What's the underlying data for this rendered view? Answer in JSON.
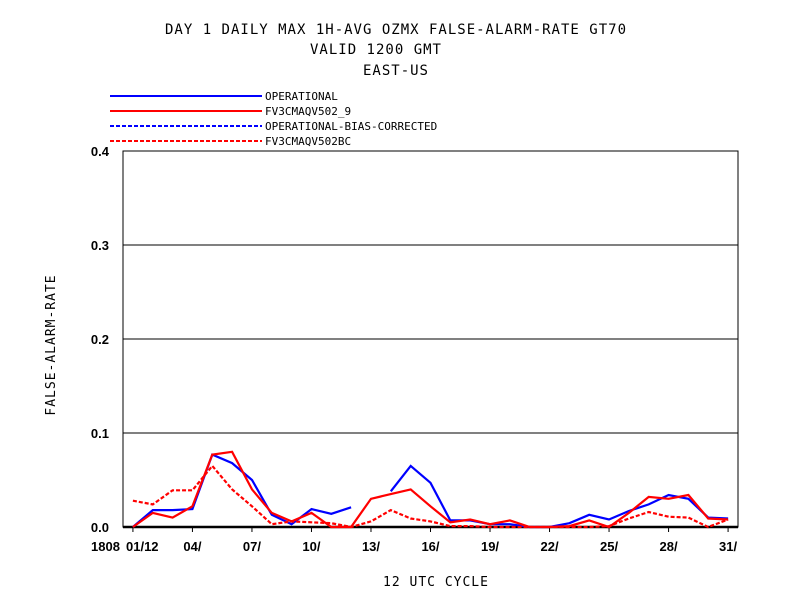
{
  "header": {
    "title_line1": "DAY 1 DAILY MAX   1H-AVG OZMX FALSE-ALARM-RATE GT70",
    "title_line2": "VALID 1200 GMT",
    "title_line3": "EAST-US"
  },
  "chart_data": {
    "type": "line",
    "title": "DAY 1 DAILY MAX   1H-AVG OZMX FALSE-ALARM-RATE GT70",
    "subtitle": "VALID 1200 GMT / EAST-US",
    "xlabel": "12 UTC CYCLE",
    "ylabel": "FALSE-ALARM-RATE",
    "ylim": [
      0.0,
      0.4
    ],
    "xlim": [
      0.5,
      31.5
    ],
    "y_ticks": [
      "0.0",
      "0.1",
      "0.2",
      "0.3",
      "0.4"
    ],
    "y_tick_values": [
      0.0,
      0.1,
      0.2,
      0.3,
      0.4
    ],
    "x_tick_labels": [
      {
        "x": 0,
        "label": "1808"
      },
      {
        "x": 1,
        "label": "01/12"
      },
      {
        "x": 4,
        "label": "04/"
      },
      {
        "x": 7,
        "label": "07/"
      },
      {
        "x": 10,
        "label": "10/"
      },
      {
        "x": 13,
        "label": "13/"
      },
      {
        "x": 16,
        "label": "16/"
      },
      {
        "x": 19,
        "label": "19/"
      },
      {
        "x": 22,
        "label": "22/"
      },
      {
        "x": 25,
        "label": "25/"
      },
      {
        "x": 28,
        "label": "28/"
      },
      {
        "x": 31,
        "label": "31/"
      }
    ],
    "grid": "horizontal",
    "legend_position": "top-left",
    "series": [
      {
        "name": "OPERATIONAL",
        "color": "#0000ff",
        "dash": "solid",
        "values": [
          [
            1,
            0.0
          ],
          [
            2,
            0.018
          ],
          [
            3,
            0.018
          ],
          [
            4,
            0.019
          ],
          [
            5,
            0.077
          ],
          [
            6,
            0.068
          ],
          [
            7,
            0.05
          ],
          [
            8,
            0.013
          ],
          [
            9,
            0.003
          ],
          [
            10,
            0.019
          ],
          [
            11,
            0.014
          ],
          [
            12,
            0.021
          ],
          null,
          [
            14,
            0.038
          ],
          [
            15,
            0.065
          ],
          [
            16,
            0.047
          ],
          [
            17,
            0.007
          ],
          [
            18,
            0.007
          ],
          [
            19,
            0.003
          ],
          [
            20,
            0.003
          ],
          [
            21,
            0.0
          ],
          [
            22,
            0.0
          ],
          [
            23,
            0.004
          ],
          [
            24,
            0.013
          ],
          [
            25,
            0.008
          ],
          [
            26,
            0.017
          ],
          [
            27,
            0.024
          ],
          [
            28,
            0.034
          ],
          [
            29,
            0.03
          ],
          [
            30,
            0.01
          ],
          [
            31,
            0.009
          ]
        ]
      },
      {
        "name": "FV3CMAQV502_9",
        "color": "#ff0000",
        "dash": "solid",
        "values": [
          [
            1,
            0.0
          ],
          [
            2,
            0.015
          ],
          [
            3,
            0.01
          ],
          [
            4,
            0.022
          ],
          [
            5,
            0.077
          ],
          [
            6,
            0.08
          ],
          [
            7,
            0.04
          ],
          [
            8,
            0.015
          ],
          [
            9,
            0.006
          ],
          [
            10,
            0.015
          ],
          [
            11,
            0.0
          ],
          [
            12,
            0.0
          ],
          [
            13,
            0.03
          ],
          [
            14,
            0.035
          ],
          [
            15,
            0.04
          ],
          [
            16,
            0.022
          ],
          [
            17,
            0.005
          ],
          [
            18,
            0.008
          ],
          [
            19,
            0.003
          ],
          [
            20,
            0.007
          ],
          [
            21,
            0.0
          ],
          [
            22,
            0.0
          ],
          [
            23,
            0.001
          ],
          [
            24,
            0.007
          ],
          [
            25,
            0.0
          ],
          [
            26,
            0.015
          ],
          [
            27,
            0.032
          ],
          [
            28,
            0.03
          ],
          [
            29,
            0.034
          ],
          [
            30,
            0.009
          ],
          [
            31,
            0.008
          ]
        ]
      },
      {
        "name": "OPERATIONAL-BIAS-CORRECTED",
        "color": "#0000ff",
        "dash": "dashed",
        "values": []
      },
      {
        "name": "FV3CMAQV502BC",
        "color": "#ff0000",
        "dash": "dashed",
        "values": [
          [
            1,
            0.028
          ],
          [
            2,
            0.024
          ],
          [
            3,
            0.039
          ],
          [
            4,
            0.039
          ],
          [
            5,
            0.065
          ],
          [
            6,
            0.04
          ],
          [
            7,
            0.022
          ],
          [
            8,
            0.003
          ],
          [
            9,
            0.006
          ],
          [
            10,
            0.005
          ],
          [
            11,
            0.004
          ],
          [
            12,
            0.0
          ],
          [
            13,
            0.006
          ],
          [
            14,
            0.018
          ],
          [
            15,
            0.009
          ],
          [
            16,
            0.006
          ],
          [
            17,
            0.001
          ],
          [
            18,
            0.001
          ],
          [
            19,
            0.0
          ],
          [
            20,
            0.0
          ],
          [
            21,
            0.0
          ],
          [
            22,
            0.0
          ],
          [
            23,
            0.0
          ],
          [
            24,
            0.0
          ],
          [
            25,
            0.001
          ],
          [
            26,
            0.009
          ],
          [
            27,
            0.016
          ],
          [
            28,
            0.011
          ],
          [
            29,
            0.01
          ],
          [
            30,
            0.0
          ],
          [
            31,
            0.008
          ]
        ]
      }
    ]
  }
}
